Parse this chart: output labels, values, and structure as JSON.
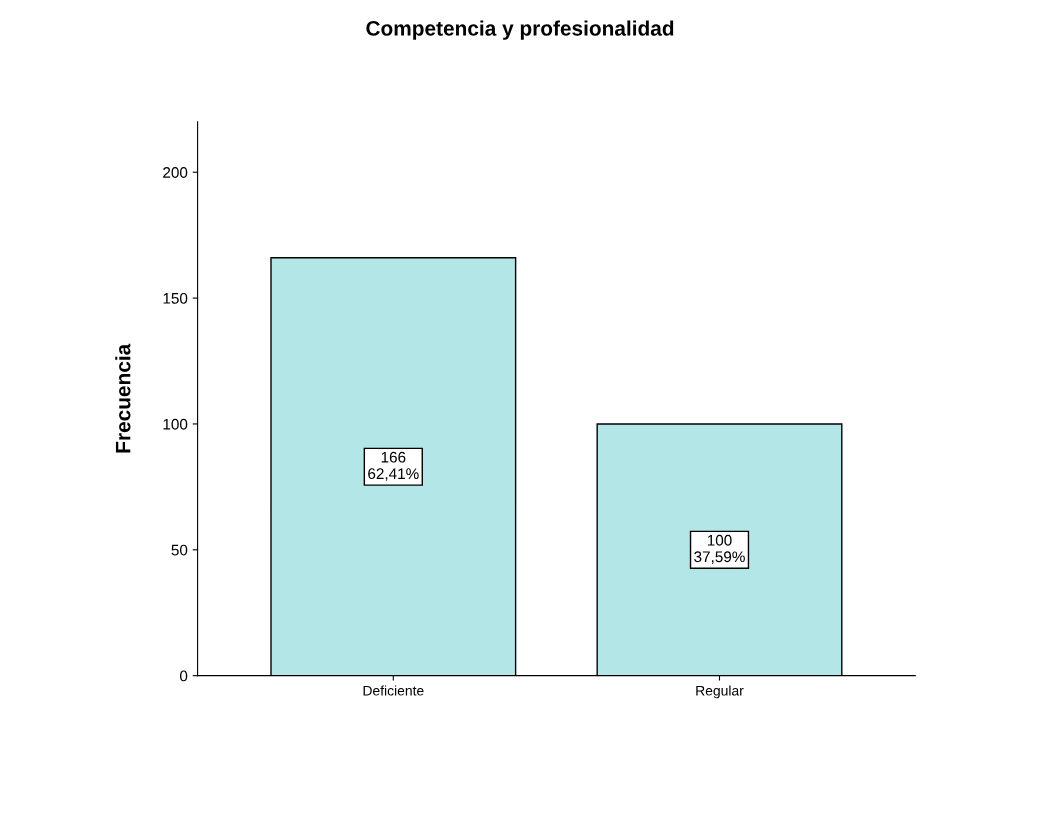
{
  "chart_data": {
    "type": "bar",
    "title": "Competencia y profesionalidad",
    "ylabel": "Frecuencia",
    "categories": [
      "Deficiente",
      "Regular"
    ],
    "values": [
      166,
      100
    ],
    "value_labels": [
      "166\n62,41%",
      "100\n37,59%"
    ],
    "color": "#b3e6e6",
    "ylim": [
      0,
      220
    ],
    "yticks": [
      0,
      50,
      100,
      150,
      200
    ],
    "grid": false,
    "legend": false
  }
}
